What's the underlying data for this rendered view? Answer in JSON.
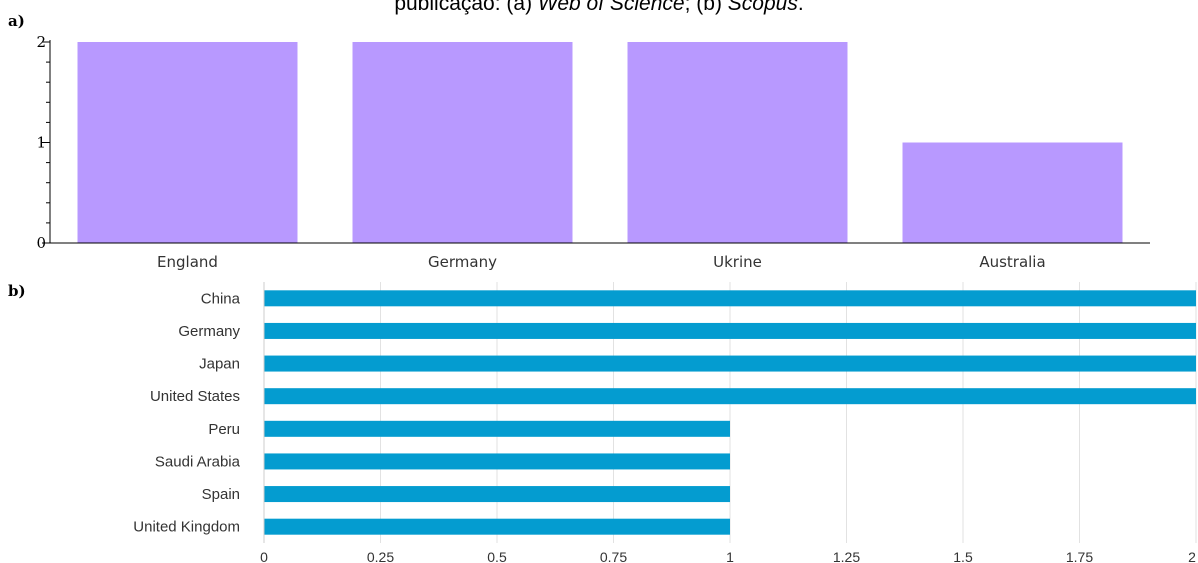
{
  "caption": {
    "prefix": "publicação: (a) ",
    "italic1": "Web of Science",
    "middle": "; (b) ",
    "italic2": "Scopus",
    "suffix": "."
  },
  "chart_data": [
    {
      "type": "bar",
      "panel_label": "a)",
      "categories": [
        "England",
        "Germany",
        "Ukrine",
        "Australia"
      ],
      "values": [
        2,
        2,
        2,
        1
      ],
      "yticks": [
        "0",
        "1",
        "2"
      ],
      "ylim": [
        0,
        2
      ],
      "color": "#b899ff",
      "grid": false
    },
    {
      "type": "bar",
      "orientation": "horizontal",
      "panel_label": "b)",
      "categories": [
        "China",
        "Germany",
        "Japan",
        "United States",
        "Peru",
        "Saudi Arabia",
        "Spain",
        "United Kingdom"
      ],
      "values": [
        2,
        2,
        2,
        2,
        1,
        1,
        1,
        1
      ],
      "xticks": [
        "0",
        "0.25",
        "0.5",
        "0.75",
        "1",
        "1.25",
        "1.5",
        "1.75",
        "2"
      ],
      "xlim": [
        0,
        2
      ],
      "color": "#049cd0",
      "grid": true
    }
  ]
}
